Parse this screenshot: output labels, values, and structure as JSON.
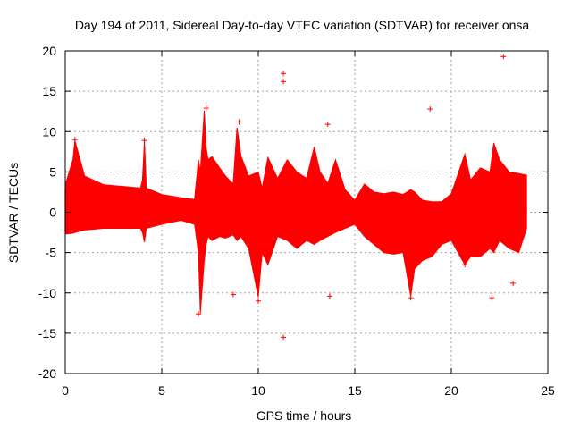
{
  "chart_data": {
    "type": "scatter",
    "title": "Day 194 of 2011, Sidereal Day-to-day VTEC variation (SDTVAR) for receiver onsa",
    "xlabel": "GPS time / hours",
    "ylabel": "SDTVAR / TECUs",
    "xlim": [
      0,
      25
    ],
    "ylim": [
      -20,
      20
    ],
    "xticks": [
      0,
      5,
      10,
      15,
      20,
      25
    ],
    "yticks": [
      -20,
      -15,
      -10,
      -5,
      0,
      5,
      10,
      15,
      20
    ],
    "grid": true,
    "marker": "+",
    "color": "#ff0000",
    "envelope": {
      "description": "dense per-epoch SDTVAR samples, upper and lower bounds",
      "x": [
        0.0,
        0.4,
        0.5,
        1.0,
        2.0,
        3.0,
        3.9,
        4.0,
        4.1,
        4.2,
        5.0,
        6.0,
        6.7,
        6.9,
        7.0,
        7.2,
        7.3,
        7.4,
        7.6,
        8.0,
        8.3,
        8.7,
        8.9,
        9.1,
        9.5,
        10.0,
        10.2,
        10.5,
        11.0,
        11.5,
        12.0,
        12.5,
        12.9,
        13.2,
        13.6,
        14.0,
        14.5,
        15.0,
        15.5,
        16.0,
        16.5,
        17.0,
        17.5,
        17.9,
        18.1,
        18.5,
        19.0,
        19.5,
        20.0,
        20.7,
        21.0,
        21.5,
        22.0,
        22.2,
        22.5,
        23.0,
        23.5,
        23.9
      ],
      "upper": [
        3.4,
        6.5,
        8.9,
        4.5,
        3.4,
        3.2,
        3.0,
        4.0,
        8.8,
        3.0,
        2.2,
        1.8,
        1.6,
        6.5,
        5.0,
        12.6,
        8.0,
        6.5,
        6.9,
        5.5,
        4.5,
        3.5,
        10.5,
        7.0,
        4.5,
        5.0,
        3.0,
        6.8,
        4.2,
        6.5,
        5.0,
        4.2,
        8.1,
        5.0,
        3.6,
        6.5,
        2.8,
        1.5,
        3.5,
        2.5,
        2.3,
        2.5,
        2.2,
        2.8,
        2.5,
        1.5,
        1.3,
        1.3,
        2.3,
        7.2,
        4.0,
        5.5,
        5.0,
        8.6,
        6.5,
        5.0,
        4.8,
        4.6
      ],
      "lower": [
        -2.7,
        -2.6,
        -2.5,
        -2.2,
        -2.0,
        -2.0,
        -2.0,
        -2.5,
        -3.7,
        -2.0,
        -1.5,
        -1.0,
        -1.5,
        -5.0,
        -12.5,
        -6.0,
        -4.0,
        -3.0,
        -3.5,
        -3.0,
        -3.2,
        -2.8,
        -3.5,
        -3.0,
        -4.5,
        -10.5,
        -5.0,
        -6.5,
        -3.0,
        -3.5,
        -4.5,
        -3.5,
        -4.0,
        -3.5,
        -3.0,
        -2.5,
        -2.0,
        -1.5,
        -3.0,
        -4.0,
        -5.0,
        -5.2,
        -5.0,
        -10.4,
        -7.0,
        -6.0,
        -5.5,
        -4.0,
        -3.5,
        -6.5,
        -5.5,
        -5.5,
        -4.5,
        -5.0,
        -3.5,
        -4.5,
        -5.0,
        -2.0
      ]
    },
    "outliers": [
      {
        "x": 11.3,
        "y": 17.2
      },
      {
        "x": 11.3,
        "y": 16.2
      },
      {
        "x": 11.3,
        "y": -15.5
      },
      {
        "x": 9.0,
        "y": 11.2
      },
      {
        "x": 8.7,
        "y": -10.2
      },
      {
        "x": 13.6,
        "y": 10.9
      },
      {
        "x": 13.7,
        "y": -10.4
      },
      {
        "x": 18.9,
        "y": 12.8
      },
      {
        "x": 22.7,
        "y": 19.3
      },
      {
        "x": 22.1,
        "y": -10.6
      },
      {
        "x": 23.2,
        "y": -8.8
      },
      {
        "x": 20.7,
        "y": -6.5
      },
      {
        "x": 4.1,
        "y": 8.9
      },
      {
        "x": 0.5,
        "y": 9.0
      },
      {
        "x": 7.3,
        "y": 12.9
      },
      {
        "x": 10.0,
        "y": -11.0
      },
      {
        "x": 17.9,
        "y": -10.6
      },
      {
        "x": 6.9,
        "y": -12.6
      }
    ]
  }
}
